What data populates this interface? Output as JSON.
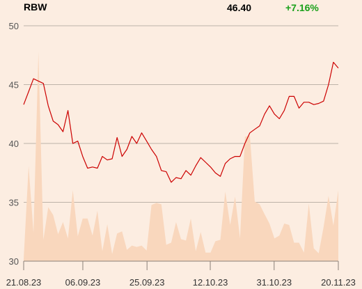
{
  "header": {
    "ticker": "RBW",
    "price": "46.40",
    "change": "+7.16%"
  },
  "colors": {
    "price_line": "#cc0000",
    "volume_fill": "#f9d7bd",
    "grid": "#bdb3a9",
    "change": "#19a019",
    "background": "#fcede1"
  },
  "chart_data": {
    "type": "line",
    "title": "",
    "xlabel": "",
    "ylabel": "",
    "ylim": [
      30,
      50
    ],
    "yticks": [
      30,
      35,
      40,
      45,
      50
    ],
    "xticks": [
      "21.08.23",
      "06.09.23",
      "25.09.23",
      "12.10.23",
      "31.10.23",
      "20.11.23"
    ],
    "grid": true,
    "series": [
      {
        "type": "line",
        "values": [
          43.3,
          44.4,
          45.5,
          45.3,
          45.1,
          43.2,
          41.9,
          41.6,
          41.0,
          42.8,
          40.0,
          40.2,
          38.9,
          37.9,
          38.0,
          37.9,
          38.9,
          38.6,
          38.7,
          40.5,
          38.9,
          39.5,
          40.6,
          40.0,
          40.9,
          40.2,
          39.5,
          38.9,
          37.7,
          37.6,
          36.7,
          37.1,
          37.0,
          37.7,
          37.3,
          38.1,
          38.8,
          38.4,
          38.0,
          37.5,
          37.2,
          38.3,
          38.7,
          38.9,
          38.9,
          40.0,
          40.9,
          41.2,
          41.5,
          42.5,
          43.2,
          42.5,
          42.1,
          42.8,
          44.0,
          44.0,
          43.0,
          43.5,
          43.5,
          43.3,
          43.4,
          43.6,
          45.0,
          46.9,
          46.4
        ]
      },
      {
        "type": "area",
        "values": [
          0.3,
          13.4,
          4.0,
          29.5,
          3.0,
          7.6,
          6.5,
          3.8,
          5.5,
          3.2,
          10.0,
          3.5,
          6.0,
          6.0,
          3.6,
          7.1,
          1.4,
          5.2,
          1.0,
          3.9,
          4.2,
          1.6,
          2.2,
          2.0,
          2.2,
          1.5,
          7.9,
          8.2,
          8.0,
          2.3,
          2.6,
          5.5,
          3.1,
          2.9,
          6.0,
          1.4,
          4.1,
          1.2,
          1.2,
          2.8,
          3.0,
          9.8,
          5.1,
          9.1,
          3.2,
          17.5,
          17.7,
          8.4,
          8.0,
          6.6,
          5.3,
          3.2,
          3.6,
          5.3,
          5.1,
          2.6,
          2.6,
          1.2,
          8.1,
          1.8,
          1.1,
          4.8,
          9.2,
          5.0,
          10.0
        ]
      }
    ]
  }
}
